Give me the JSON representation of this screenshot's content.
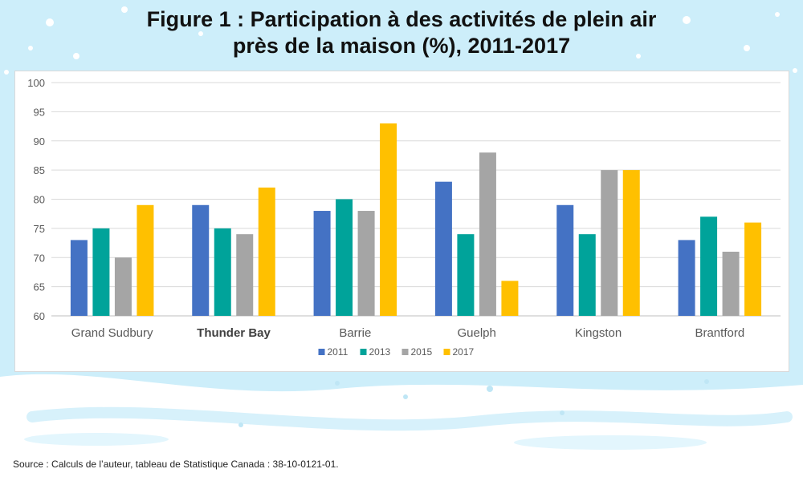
{
  "title_line1": "Figure 1 : Participation à des activités de plein air",
  "title_line2": "près de la maison (%), 2011-2017",
  "source": "Source : Calculs de l’auteur, tableau de Statistique Canada : 38-10-0121-01.",
  "colors": {
    "2011": "#4472c4",
    "2013": "#00a39a",
    "2015": "#a5a5a5",
    "2017": "#ffc000"
  },
  "chart_data": {
    "type": "bar",
    "categories": [
      "Grand Sudbury",
      "Thunder Bay",
      "Barrie",
      "Guelph",
      "Kingston",
      "Brantford"
    ],
    "bold_categories": [
      "Thunder Bay"
    ],
    "series": [
      {
        "name": "2011",
        "values": [
          73,
          79,
          78,
          83,
          79,
          73
        ]
      },
      {
        "name": "2013",
        "values": [
          75,
          75,
          80,
          74,
          74,
          77
        ]
      },
      {
        "name": "2015",
        "values": [
          70,
          74,
          78,
          88,
          85,
          71
        ]
      },
      {
        "name": "2017",
        "values": [
          79,
          82,
          93,
          66,
          85,
          76
        ]
      }
    ],
    "ylim": [
      60,
      100
    ],
    "yticks": [
      60,
      65,
      70,
      75,
      80,
      85,
      90,
      95,
      100
    ],
    "grid": true,
    "legend": "bottom"
  }
}
